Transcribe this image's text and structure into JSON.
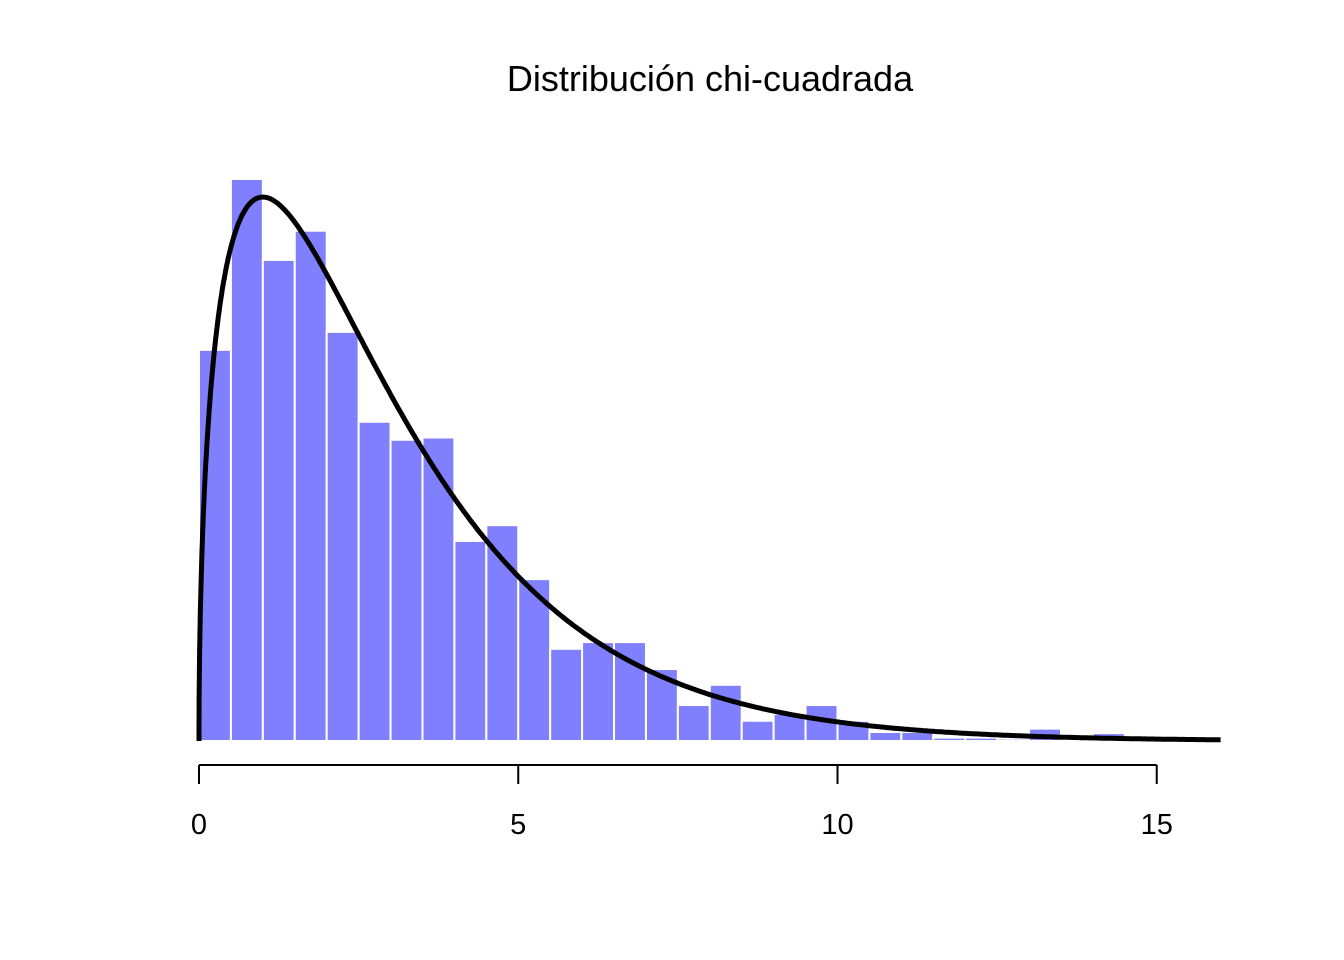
{
  "chart_data": {
    "type": "bar",
    "title": "Distribución chi-cuadrada",
    "xlabel": "",
    "ylabel": "",
    "bin_width": 0.5,
    "bin_starts": [
      0,
      0.5,
      1,
      1.5,
      2,
      2.5,
      3,
      3.5,
      4,
      4.5,
      5,
      5.5,
      6,
      6.5,
      7,
      7.5,
      8,
      8.5,
      9,
      9.5,
      10,
      10.5,
      11,
      11.5,
      12,
      12.5,
      13,
      13.5,
      14
    ],
    "density": [
      0.174,
      0.25,
      0.214,
      0.227,
      0.182,
      0.142,
      0.134,
      0.135,
      0.089,
      0.096,
      0.072,
      0.041,
      0.044,
      0.044,
      0.032,
      0.016,
      0.025,
      0.009,
      0.012,
      0.016,
      0.009,
      0.004,
      0.004,
      0.0015,
      0.0015,
      0.001,
      0.0055,
      0,
      0.0035
    ],
    "curve": {
      "distribution": "chi-squared",
      "df": 3,
      "x_range": [
        0,
        16
      ]
    },
    "xlim": [
      0,
      16
    ],
    "ylim": [
      0,
      0.25
    ],
    "x_ticks": [
      0,
      5,
      10,
      15
    ],
    "x_tick_labels": [
      "0",
      "5",
      "10",
      "15"
    ],
    "bar_color": "#8080FF",
    "bar_border": "#FFFFFF",
    "curve_color": "#000000",
    "grid": false,
    "y_axis": false
  }
}
